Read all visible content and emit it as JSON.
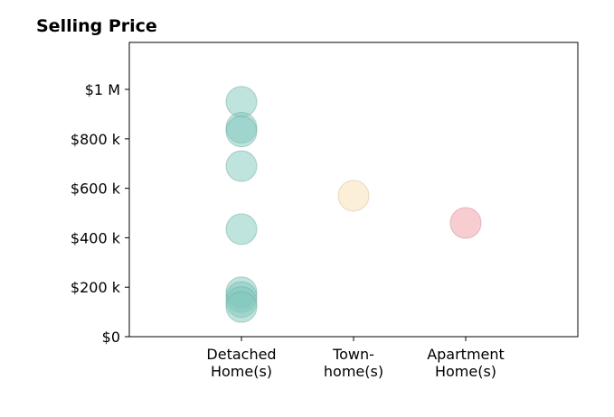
{
  "chart_data": {
    "type": "scatter",
    "title": "Selling Price",
    "xlabel": "",
    "ylabel": "",
    "categories": [
      {
        "key": "detached",
        "lines": [
          "Detached",
          "Home(s)"
        ],
        "color": "#7fc8bc"
      },
      {
        "key": "townhome",
        "lines": [
          "Town-",
          "home(s)"
        ],
        "color": "#f7dfb0"
      },
      {
        "key": "apartment",
        "lines": [
          "Apartment",
          "Home(s)"
        ],
        "color": "#f29ca4"
      }
    ],
    "points": [
      {
        "category": "detached",
        "y": 950000
      },
      {
        "category": "detached",
        "y": 845000
      },
      {
        "category": "detached",
        "y": 830000
      },
      {
        "category": "detached",
        "y": 690000
      },
      {
        "category": "detached",
        "y": 435000
      },
      {
        "category": "detached",
        "y": 180000
      },
      {
        "category": "detached",
        "y": 160000
      },
      {
        "category": "detached",
        "y": 140000
      },
      {
        "category": "detached",
        "y": 120000
      },
      {
        "category": "townhome",
        "y": 570000
      },
      {
        "category": "apartment",
        "y": 460000
      }
    ],
    "yticks": [
      {
        "value": 0,
        "label": "$0"
      },
      {
        "value": 200000,
        "label": "$200 k"
      },
      {
        "value": 400000,
        "label": "$400 k"
      },
      {
        "value": 600000,
        "label": "$600 k"
      },
      {
        "value": 800000,
        "label": "$800 k"
      },
      {
        "value": 1000000,
        "label": "$1 M"
      }
    ],
    "ylim": [
      0,
      1190000
    ],
    "marker_opacity": 0.5,
    "grid": false,
    "legend": "none"
  }
}
